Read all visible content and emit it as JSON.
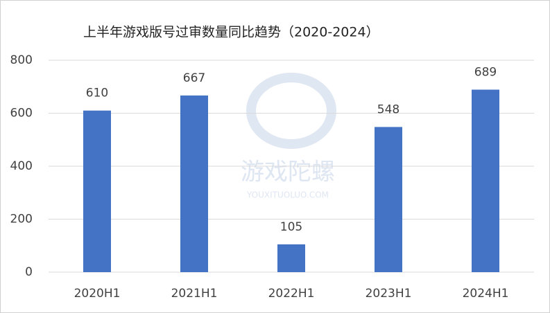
{
  "chart_data": {
    "type": "bar",
    "title": "上半年游戏版号过审数量同比趋势（2020-2024）",
    "categories": [
      "2020H1",
      "2021H1",
      "2022H1",
      "2023H1",
      "2024H1"
    ],
    "values": [
      610,
      667,
      105,
      548,
      689
    ],
    "color": "#4472c4",
    "ylim": [
      0,
      800
    ],
    "yticks": [
      0,
      200,
      400,
      600,
      800
    ],
    "grid": true,
    "watermark": [
      "游戏陀螺",
      "YOUXITUOLUO.COM"
    ]
  }
}
